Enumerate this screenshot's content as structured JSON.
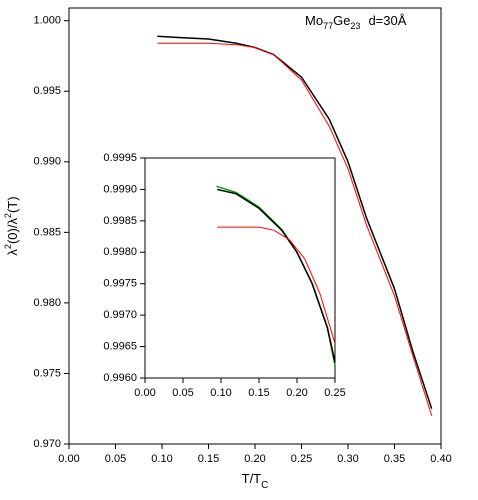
{
  "chart_data": [
    {
      "type": "line",
      "annotation": [
        "Mo",
        "77",
        "Ge",
        "23",
        "d=30Å"
      ],
      "xlabel": [
        "T/T",
        "C"
      ],
      "ylabel": [
        "λ",
        "2",
        "(0)/λ",
        "2",
        "(T)"
      ],
      "xlim": [
        0,
        0.4
      ],
      "ylim": [
        0.97,
        1.0009
      ],
      "xticks": [
        {
          "value": 0,
          "label": "0.00"
        },
        0.05,
        {
          "value": 0.1,
          "label": "0.10"
        },
        0.15,
        {
          "value": 0.2,
          "label": "0.20"
        },
        0.25,
        {
          "value": 0.3,
          "label": "0.30"
        },
        0.35,
        {
          "value": 0.4,
          "label": "0.40"
        }
      ],
      "yticks": [
        {
          "value": 0.97,
          "label": "0.970"
        },
        0.975,
        {
          "value": 0.98,
          "label": "0.980"
        },
        0.985,
        {
          "value": 0.99,
          "label": "0.990"
        },
        0.995,
        {
          "value": 1,
          "label": "1.000"
        }
      ],
      "series": [
        {
          "color": "#000000",
          "x": [
            0.095,
            0.12,
            0.15,
            0.18,
            0.2,
            0.22,
            0.25,
            0.28,
            0.3,
            0.32,
            0.35,
            0.37,
            0.39
          ],
          "values": [
            0.9989,
            0.9988,
            0.9987,
            0.9984,
            0.9981,
            0.9976,
            0.996,
            0.993,
            0.99,
            0.986,
            0.981,
            0.9765,
            0.9725
          ]
        },
        {
          "color": "#ff0000",
          "x": [
            0.095,
            0.12,
            0.15,
            0.18,
            0.2,
            0.22,
            0.25,
            0.28,
            0.3,
            0.32,
            0.35,
            0.37,
            0.39
          ],
          "values": [
            0.9984,
            0.9984,
            0.9984,
            0.9983,
            0.9981,
            0.9976,
            0.9958,
            0.9925,
            0.9895,
            0.9855,
            0.9805,
            0.9762,
            0.972
          ]
        }
      ]
    },
    {
      "type": "line",
      "xlim": [
        0,
        0.25
      ],
      "ylim": [
        0.996,
        0.9995
      ],
      "xticks": [
        {
          "value": 0,
          "label": "0.00"
        },
        0.05,
        {
          "value": 0.1,
          "label": "0.10"
        },
        0.15,
        {
          "value": 0.2,
          "label": "0.20"
        },
        0.25
      ],
      "yticks": [
        {
          "value": 0.996,
          "label": "0.9960"
        },
        0.9965,
        {
          "value": 0.997,
          "label": "0.9970"
        },
        0.9975,
        {
          "value": 0.998,
          "label": "0.9980"
        },
        0.9985,
        {
          "value": 0.999,
          "label": "0.9990"
        },
        0.9995
      ],
      "series": [
        {
          "color": "#00a000",
          "x": [
            0.094,
            0.12,
            0.15,
            0.18,
            0.2,
            0.22,
            0.24,
            0.25
          ],
          "values": [
            0.99905,
            0.99895,
            0.99872,
            0.99836,
            0.998,
            0.9975,
            0.9968,
            0.9962
          ]
        },
        {
          "color": "#000000",
          "x": [
            0.095,
            0.12,
            0.15,
            0.18,
            0.2,
            0.22,
            0.24,
            0.25
          ],
          "values": [
            0.999,
            0.99893,
            0.9987,
            0.99835,
            0.998,
            0.9975,
            0.9968,
            0.99625
          ]
        },
        {
          "color": "#ff0000",
          "x": [
            0.095,
            0.15,
            0.17,
            0.19,
            0.21,
            0.23,
            0.25
          ],
          "values": [
            0.9984,
            0.9984,
            0.99835,
            0.9982,
            0.9979,
            0.99735,
            0.99655
          ]
        }
      ]
    }
  ]
}
